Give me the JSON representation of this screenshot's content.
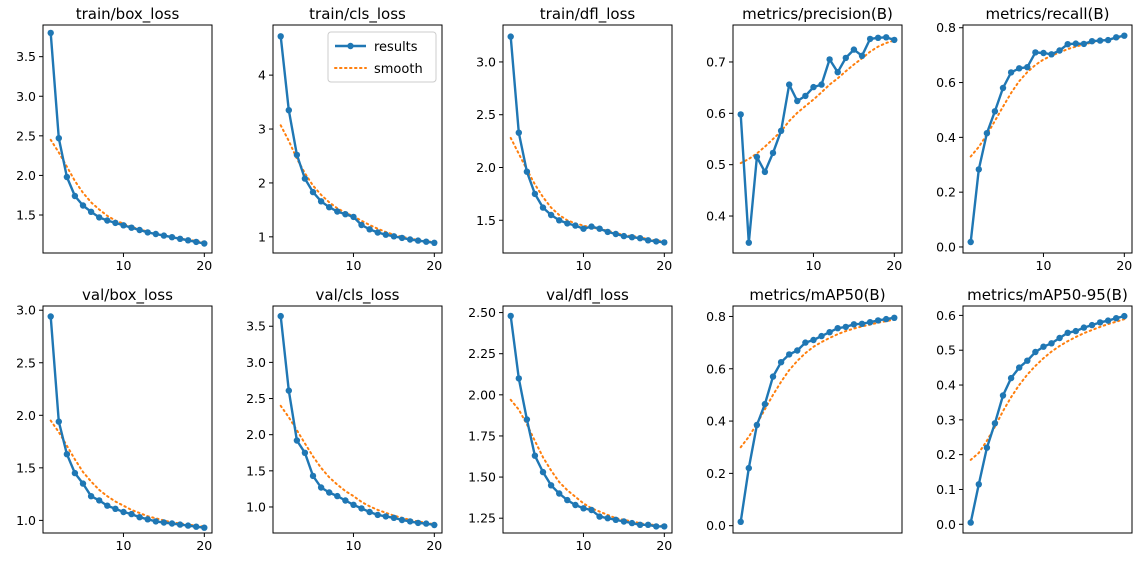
{
  "colors": {
    "results": "#1f77b4",
    "smooth": "#ff7f0e",
    "axis": "#000000"
  },
  "legend": {
    "results_label": "results",
    "smooth_label": "smooth",
    "placement": "upper-right"
  },
  "chart_data": [
    {
      "type": "line",
      "title": "train/box_loss",
      "x": [
        1,
        2,
        3,
        4,
        5,
        6,
        7,
        8,
        9,
        10,
        11,
        12,
        13,
        14,
        15,
        16,
        17,
        18,
        19,
        20
      ],
      "xlim": [
        0.05,
        20.95
      ],
      "xticks": [
        10,
        20
      ],
      "ylim": [
        1.02,
        3.9
      ],
      "yticks": [
        1.5,
        2.0,
        2.5,
        3.0,
        3.5
      ],
      "ytick_labels": [
        "1.5",
        "2.0",
        "2.5",
        "3.0",
        "3.5"
      ],
      "series": [
        {
          "name": "results",
          "values": [
            3.8,
            2.47,
            1.98,
            1.74,
            1.62,
            1.54,
            1.47,
            1.43,
            1.4,
            1.37,
            1.34,
            1.31,
            1.28,
            1.26,
            1.24,
            1.22,
            1.2,
            1.18,
            1.16,
            1.14
          ]
        },
        {
          "name": "smooth",
          "values": [
            2.45,
            2.29,
            2.11,
            1.93,
            1.78,
            1.66,
            1.57,
            1.49,
            1.43,
            1.39,
            1.35,
            1.32,
            1.29,
            1.26,
            1.24,
            1.22,
            1.2,
            1.19,
            1.17,
            1.16
          ]
        }
      ]
    },
    {
      "type": "line",
      "title": "train/cls_loss",
      "x": [
        1,
        2,
        3,
        4,
        5,
        6,
        7,
        8,
        9,
        10,
        11,
        12,
        13,
        14,
        15,
        16,
        17,
        18,
        19,
        20
      ],
      "xlim": [
        0.05,
        20.95
      ],
      "xticks": [
        10,
        20
      ],
      "ylim": [
        0.7,
        4.93
      ],
      "yticks": [
        1,
        2,
        3,
        4
      ],
      "ytick_labels": [
        "1",
        "2",
        "3",
        "4"
      ],
      "show_legend": true,
      "series": [
        {
          "name": "results",
          "values": [
            4.72,
            3.35,
            2.52,
            2.08,
            1.83,
            1.66,
            1.55,
            1.47,
            1.42,
            1.37,
            1.22,
            1.14,
            1.08,
            1.04,
            1.01,
            0.98,
            0.95,
            0.93,
            0.91,
            0.89
          ]
        },
        {
          "name": "smooth",
          "values": [
            3.07,
            2.78,
            2.45,
            2.18,
            1.95,
            1.78,
            1.64,
            1.53,
            1.45,
            1.38,
            1.3,
            1.22,
            1.15,
            1.09,
            1.04,
            1.0,
            0.97,
            0.94,
            0.92,
            0.9
          ]
        }
      ]
    },
    {
      "type": "line",
      "title": "train/dfl_loss",
      "x": [
        1,
        2,
        3,
        4,
        5,
        6,
        7,
        8,
        9,
        10,
        11,
        12,
        13,
        14,
        15,
        16,
        17,
        18,
        19,
        20
      ],
      "xlim": [
        0.05,
        20.95
      ],
      "xticks": [
        10,
        20
      ],
      "ylim": [
        1.19,
        3.35
      ],
      "yticks": [
        1.5,
        2.0,
        2.5,
        3.0
      ],
      "ytick_labels": [
        "1.5",
        "2.0",
        "2.5",
        "3.0"
      ],
      "series": [
        {
          "name": "results",
          "values": [
            3.24,
            2.33,
            1.96,
            1.75,
            1.62,
            1.55,
            1.5,
            1.47,
            1.45,
            1.42,
            1.44,
            1.42,
            1.39,
            1.37,
            1.35,
            1.34,
            1.33,
            1.31,
            1.3,
            1.29
          ]
        },
        {
          "name": "smooth",
          "values": [
            2.28,
            2.13,
            1.98,
            1.84,
            1.72,
            1.62,
            1.55,
            1.5,
            1.47,
            1.45,
            1.43,
            1.42,
            1.4,
            1.38,
            1.36,
            1.35,
            1.34,
            1.32,
            1.31,
            1.3
          ]
        }
      ]
    },
    {
      "type": "line",
      "title": "metrics/precision(B)",
      "x": [
        1,
        2,
        3,
        4,
        5,
        6,
        7,
        8,
        9,
        10,
        11,
        12,
        13,
        14,
        15,
        16,
        17,
        18,
        19,
        20
      ],
      "xlim": [
        0.05,
        20.95
      ],
      "xticks": [
        10,
        20
      ],
      "ylim": [
        0.328,
        0.772
      ],
      "yticks": [
        0.4,
        0.5,
        0.6,
        0.7
      ],
      "ytick_labels": [
        "0.4",
        "0.5",
        "0.6",
        "0.7"
      ],
      "series": [
        {
          "name": "results",
          "values": [
            0.598,
            0.348,
            0.515,
            0.486,
            0.523,
            0.566,
            0.656,
            0.624,
            0.634,
            0.651,
            0.656,
            0.705,
            0.68,
            0.708,
            0.724,
            0.712,
            0.745,
            0.747,
            0.748,
            0.743
          ]
        },
        {
          "name": "smooth",
          "values": [
            0.503,
            0.511,
            0.522,
            0.535,
            0.55,
            0.565,
            0.585,
            0.601,
            0.614,
            0.627,
            0.641,
            0.656,
            0.668,
            0.682,
            0.695,
            0.707,
            0.72,
            0.73,
            0.737,
            0.742
          ]
        }
      ]
    },
    {
      "type": "line",
      "title": "metrics/recall(B)",
      "x": [
        1,
        2,
        3,
        4,
        5,
        6,
        7,
        8,
        9,
        10,
        11,
        12,
        13,
        14,
        15,
        16,
        17,
        18,
        19,
        20
      ],
      "xlim": [
        0.05,
        20.95
      ],
      "xticks": [
        10,
        20
      ],
      "ylim": [
        -0.022,
        0.81
      ],
      "yticks": [
        0.0,
        0.2,
        0.4,
        0.6,
        0.8
      ],
      "ytick_labels": [
        "0.0",
        "0.2",
        "0.4",
        "0.6",
        "0.8"
      ],
      "series": [
        {
          "name": "results",
          "values": [
            0.018,
            0.283,
            0.415,
            0.495,
            0.58,
            0.637,
            0.652,
            0.656,
            0.71,
            0.708,
            0.703,
            0.717,
            0.74,
            0.742,
            0.741,
            0.751,
            0.753,
            0.755,
            0.765,
            0.771
          ]
        },
        {
          "name": "smooth",
          "values": [
            0.33,
            0.365,
            0.41,
            0.46,
            0.512,
            0.562,
            0.605,
            0.638,
            0.664,
            0.684,
            0.698,
            0.71,
            0.722,
            0.731,
            0.739,
            0.746,
            0.752,
            0.757,
            0.762,
            0.767
          ]
        }
      ]
    },
    {
      "type": "line",
      "title": "val/box_loss",
      "x": [
        1,
        2,
        3,
        4,
        5,
        6,
        7,
        8,
        9,
        10,
        11,
        12,
        13,
        14,
        15,
        16,
        17,
        18,
        19,
        20
      ],
      "xlim": [
        0.05,
        20.95
      ],
      "xticks": [
        10,
        20
      ],
      "ylim": [
        0.88,
        3.04
      ],
      "yticks": [
        1.0,
        1.5,
        2.0,
        2.5,
        3.0
      ],
      "ytick_labels": [
        "1.0",
        "1.5",
        "2.0",
        "2.5",
        "3.0"
      ],
      "series": [
        {
          "name": "results",
          "values": [
            2.94,
            1.94,
            1.63,
            1.45,
            1.35,
            1.23,
            1.19,
            1.14,
            1.11,
            1.08,
            1.06,
            1.03,
            1.01,
            0.99,
            0.98,
            0.97,
            0.96,
            0.95,
            0.94,
            0.93
          ]
        },
        {
          "name": "smooth",
          "values": [
            1.95,
            1.84,
            1.71,
            1.58,
            1.46,
            1.37,
            1.29,
            1.23,
            1.18,
            1.14,
            1.1,
            1.07,
            1.04,
            1.02,
            1.0,
            0.98,
            0.97,
            0.96,
            0.95,
            0.94
          ]
        }
      ]
    },
    {
      "type": "line",
      "title": "val/cls_loss",
      "x": [
        1,
        2,
        3,
        4,
        5,
        6,
        7,
        8,
        9,
        10,
        11,
        12,
        13,
        14,
        15,
        16,
        17,
        18,
        19,
        20
      ],
      "xlim": [
        0.05,
        20.95
      ],
      "xticks": [
        10,
        20
      ],
      "ylim": [
        0.64,
        3.78
      ],
      "yticks": [
        1.0,
        1.5,
        2.0,
        2.5,
        3.0,
        3.5
      ],
      "ytick_labels": [
        "1.0",
        "1.5",
        "2.0",
        "2.5",
        "3.0",
        "3.5"
      ],
      "series": [
        {
          "name": "results",
          "values": [
            3.64,
            2.61,
            1.92,
            1.75,
            1.43,
            1.27,
            1.2,
            1.15,
            1.09,
            1.03,
            0.98,
            0.93,
            0.89,
            0.87,
            0.85,
            0.82,
            0.8,
            0.78,
            0.77,
            0.75
          ]
        },
        {
          "name": "smooth",
          "values": [
            2.4,
            2.24,
            2.06,
            1.88,
            1.7,
            1.54,
            1.41,
            1.31,
            1.22,
            1.15,
            1.07,
            1.01,
            0.96,
            0.92,
            0.88,
            0.85,
            0.82,
            0.8,
            0.78,
            0.76
          ]
        }
      ]
    },
    {
      "type": "line",
      "title": "val/dfl_loss",
      "x": [
        1,
        2,
        3,
        4,
        5,
        6,
        7,
        8,
        9,
        10,
        11,
        12,
        13,
        14,
        15,
        16,
        17,
        18,
        19,
        20
      ],
      "xlim": [
        0.05,
        20.95
      ],
      "xticks": [
        10,
        20
      ],
      "ylim": [
        1.16,
        2.54
      ],
      "yticks": [
        1.25,
        1.5,
        1.75,
        2.0,
        2.25,
        2.5
      ],
      "ytick_labels": [
        "1.25",
        "1.50",
        "1.75",
        "2.00",
        "2.25",
        "2.50"
      ],
      "series": [
        {
          "name": "results",
          "values": [
            2.48,
            2.1,
            1.85,
            1.63,
            1.53,
            1.45,
            1.4,
            1.36,
            1.33,
            1.31,
            1.3,
            1.26,
            1.25,
            1.24,
            1.23,
            1.22,
            1.21,
            1.21,
            1.2,
            1.2
          ]
        },
        {
          "name": "smooth",
          "values": [
            1.97,
            1.91,
            1.82,
            1.72,
            1.62,
            1.54,
            1.47,
            1.42,
            1.38,
            1.34,
            1.31,
            1.29,
            1.27,
            1.25,
            1.24,
            1.23,
            1.22,
            1.21,
            1.21,
            1.2
          ]
        }
      ]
    },
    {
      "type": "line",
      "title": "metrics/mAP50(B)",
      "x": [
        1,
        2,
        3,
        4,
        5,
        6,
        7,
        8,
        9,
        10,
        11,
        12,
        13,
        14,
        15,
        16,
        17,
        18,
        19,
        20
      ],
      "xlim": [
        0.05,
        20.95
      ],
      "xticks": [],
      "ylim": [
        -0.028,
        0.84
      ],
      "yticks": [
        0.0,
        0.2,
        0.4,
        0.6,
        0.8
      ],
      "ytick_labels": [
        "0.0",
        "0.2",
        "0.4",
        "0.6",
        "0.8"
      ],
      "series": [
        {
          "name": "results",
          "values": [
            0.015,
            0.22,
            0.385,
            0.465,
            0.57,
            0.625,
            0.655,
            0.67,
            0.7,
            0.71,
            0.725,
            0.74,
            0.755,
            0.76,
            0.77,
            0.772,
            0.778,
            0.785,
            0.79,
            0.795
          ]
        },
        {
          "name": "smooth",
          "values": [
            0.3,
            0.34,
            0.39,
            0.445,
            0.5,
            0.55,
            0.595,
            0.63,
            0.66,
            0.684,
            0.702,
            0.718,
            0.732,
            0.744,
            0.754,
            0.762,
            0.769,
            0.776,
            0.782,
            0.788
          ]
        }
      ]
    },
    {
      "type": "line",
      "title": "metrics/mAP50-95(B)",
      "x": [
        1,
        2,
        3,
        4,
        5,
        6,
        7,
        8,
        9,
        10,
        11,
        12,
        13,
        14,
        15,
        16,
        17,
        18,
        19,
        20
      ],
      "xlim": [
        0.05,
        20.95
      ],
      "xticks": [],
      "ylim": [
        -0.025,
        0.627
      ],
      "yticks": [
        0.0,
        0.1,
        0.2,
        0.3,
        0.4,
        0.5,
        0.6
      ],
      "ytick_labels": [
        "0.0",
        "0.1",
        "0.2",
        "0.3",
        "0.4",
        "0.5",
        "0.6"
      ],
      "series": [
        {
          "name": "results",
          "values": [
            0.005,
            0.115,
            0.22,
            0.29,
            0.37,
            0.42,
            0.45,
            0.47,
            0.495,
            0.51,
            0.52,
            0.535,
            0.55,
            0.555,
            0.565,
            0.572,
            0.58,
            0.585,
            0.592,
            0.598
          ]
        },
        {
          "name": "smooth",
          "values": [
            0.185,
            0.205,
            0.24,
            0.28,
            0.325,
            0.365,
            0.4,
            0.43,
            0.455,
            0.477,
            0.496,
            0.512,
            0.526,
            0.538,
            0.549,
            0.558,
            0.567,
            0.575,
            0.582,
            0.589
          ]
        }
      ]
    }
  ]
}
